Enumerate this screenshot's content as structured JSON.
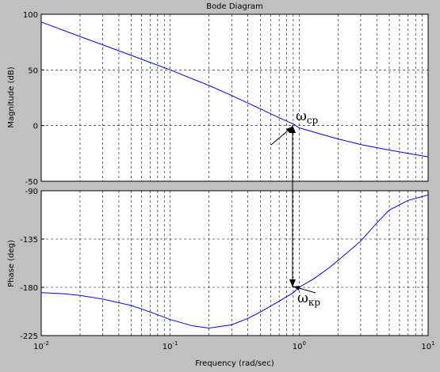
{
  "figure": {
    "background": "#c0c0c0",
    "plot_background": "#ffffff",
    "curve_color": "#0000ff"
  },
  "chart_data": [
    {
      "type": "line",
      "title": "Bode Diagram",
      "xlabel": "",
      "ylabel": "Magnitude (dB)",
      "xscale": "log",
      "xlim": [
        0.01,
        10
      ],
      "ylim": [
        -50,
        100
      ],
      "yticks": [
        {
          "value": -50,
          "label": "-50"
        },
        {
          "value": 0,
          "label": "0"
        },
        {
          "value": 50,
          "label": "50"
        },
        {
          "value": 100,
          "label": "100"
        }
      ],
      "grid": true,
      "series": [
        {
          "x": [
            0.01,
            0.02,
            0.05,
            0.1,
            0.2,
            0.3,
            0.5,
            0.7,
            0.9,
            1.0,
            1.5,
            2,
            3,
            5,
            7,
            10
          ],
          "y": [
            93,
            80,
            63,
            50,
            36,
            27,
            15,
            7,
            1.5,
            -2,
            -8,
            -12,
            -17,
            -22,
            -25,
            -28
          ]
        }
      ],
      "annotation": {
        "main": "ω",
        "sub": "ср",
        "x": 0.93,
        "y": 0
      }
    },
    {
      "type": "line",
      "xlabel": "Frequency  (rad/sec)",
      "ylabel": "Phase (deg)",
      "xscale": "log",
      "xlim": [
        0.01,
        10
      ],
      "ylim": [
        -225,
        -90
      ],
      "yticks": [
        {
          "value": -225,
          "label": "-225"
        },
        {
          "value": -180,
          "label": "-180"
        },
        {
          "value": -135,
          "label": "-135"
        },
        {
          "value": -90,
          "label": "-90"
        }
      ],
      "xticks": [
        {
          "value": 0.01,
          "base": "10",
          "exp": "-2"
        },
        {
          "value": 0.1,
          "base": "10",
          "exp": "-1"
        },
        {
          "value": 1,
          "base": "10",
          "exp": "0"
        },
        {
          "value": 10,
          "base": "10",
          "exp": "1"
        }
      ],
      "grid": true,
      "series": [
        {
          "x": [
            0.01,
            0.015,
            0.02,
            0.03,
            0.05,
            0.07,
            0.1,
            0.15,
            0.2,
            0.3,
            0.4,
            0.5,
            0.7,
            0.9,
            1.0,
            1.3,
            1.7,
            2,
            3,
            4,
            5,
            7,
            10
          ],
          "y": [
            -185,
            -186,
            -187.5,
            -191,
            -197,
            -203,
            -210,
            -216,
            -218,
            -215,
            -209,
            -203,
            -193,
            -185,
            -180,
            -172,
            -162,
            -155,
            -137,
            -120,
            -108,
            -99,
            -94
          ]
        }
      ],
      "annotation": {
        "main": "ω",
        "sub": "кр",
        "x": 0.93,
        "y": -180
      }
    }
  ]
}
